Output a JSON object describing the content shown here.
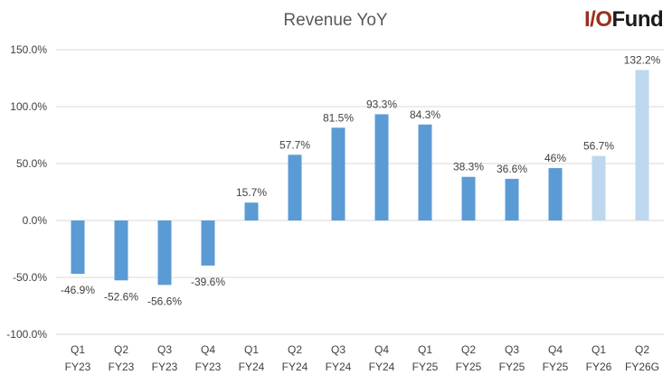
{
  "brand": {
    "logo_io": "I/O",
    "logo_fund": "Fund"
  },
  "chart_data": {
    "type": "bar",
    "title": "Revenue YoY",
    "xlabel": "",
    "ylabel": "",
    "ylim": [
      -100,
      150
    ],
    "y_ticks": [
      150,
      100,
      50,
      0,
      -50,
      -100
    ],
    "y_tick_labels": [
      "150.0%",
      "100.0%",
      "50.0%",
      "0.0%",
      "-50.0%",
      "-100.0%"
    ],
    "grid": true,
    "categories": [
      [
        "Q1",
        "FY23"
      ],
      [
        "Q2",
        "FY23"
      ],
      [
        "Q3",
        "FY23"
      ],
      [
        "Q4",
        "FY23"
      ],
      [
        "Q1",
        "FY24"
      ],
      [
        "Q2",
        "FY24"
      ],
      [
        "Q3",
        "FY24"
      ],
      [
        "Q4",
        "FY24"
      ],
      [
        "Q1",
        "FY25"
      ],
      [
        "Q2",
        "FY25"
      ],
      [
        "Q3",
        "FY25"
      ],
      [
        "Q4",
        "FY25"
      ],
      [
        "Q1",
        "FY26"
      ],
      [
        "Q2",
        "FY26G"
      ]
    ],
    "values": [
      -46.9,
      -52.6,
      -56.6,
      -39.6,
      15.7,
      57.7,
      81.5,
      93.3,
      84.3,
      38.3,
      36.6,
      46,
      56.7,
      132.2
    ],
    "data_labels": [
      "-46.9%",
      "-52.6%",
      "-56.6%",
      "-39.6%",
      "15.7%",
      "57.7%",
      "81.5%",
      "93.3%",
      "84.3%",
      "38.3%",
      "36.6%",
      "46%",
      "56.7%",
      "132.2%"
    ],
    "projected": [
      false,
      false,
      false,
      false,
      false,
      false,
      false,
      false,
      false,
      false,
      false,
      false,
      true,
      true
    ],
    "colors": {
      "actual": "#5b9bd5",
      "projected": "#bdd7ee",
      "grid": "#d9d9d9",
      "text": "#404040",
      "title": "#595959"
    }
  }
}
